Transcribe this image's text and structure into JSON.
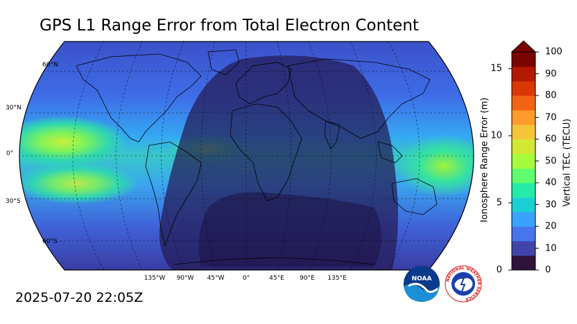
{
  "title": "GPS L1 Range Error from Total Electron Content",
  "timestamp": "2025-07-20 22:05Z",
  "map": {
    "projection": "robinson",
    "graticule_lat_labels": [
      "60°N",
      "30°N",
      "0°",
      "30°S",
      "60°S"
    ],
    "graticule_lon_labels": [
      "135°W",
      "90°W",
      "45°W",
      "0°",
      "45°E",
      "90°E",
      "135°E"
    ],
    "night_overlay": true
  },
  "colorbar": {
    "left_label": "Ionosphere Range Error (m)",
    "right_label": "Vertical TEC (TECU)",
    "left_ticks": [
      "0",
      "5",
      "10",
      "15"
    ],
    "right_ticks": [
      "0",
      "10",
      "20",
      "30",
      "40",
      "50",
      "60",
      "70",
      "80",
      "90",
      "100"
    ],
    "extend": "max",
    "colormap": [
      "#30123b",
      "#4145ab",
      "#4675ed",
      "#39a2fc",
      "#1bcfd4",
      "#24eca6",
      "#61fc6c",
      "#a4fc3b",
      "#d1e834",
      "#f3c63a",
      "#fe9b2d",
      "#f36315",
      "#d93806",
      "#b11901",
      "#7a0402"
    ]
  },
  "logos": {
    "noaa": "NOAA",
    "nws": "NATIONAL WEATHER SERVICE"
  }
}
